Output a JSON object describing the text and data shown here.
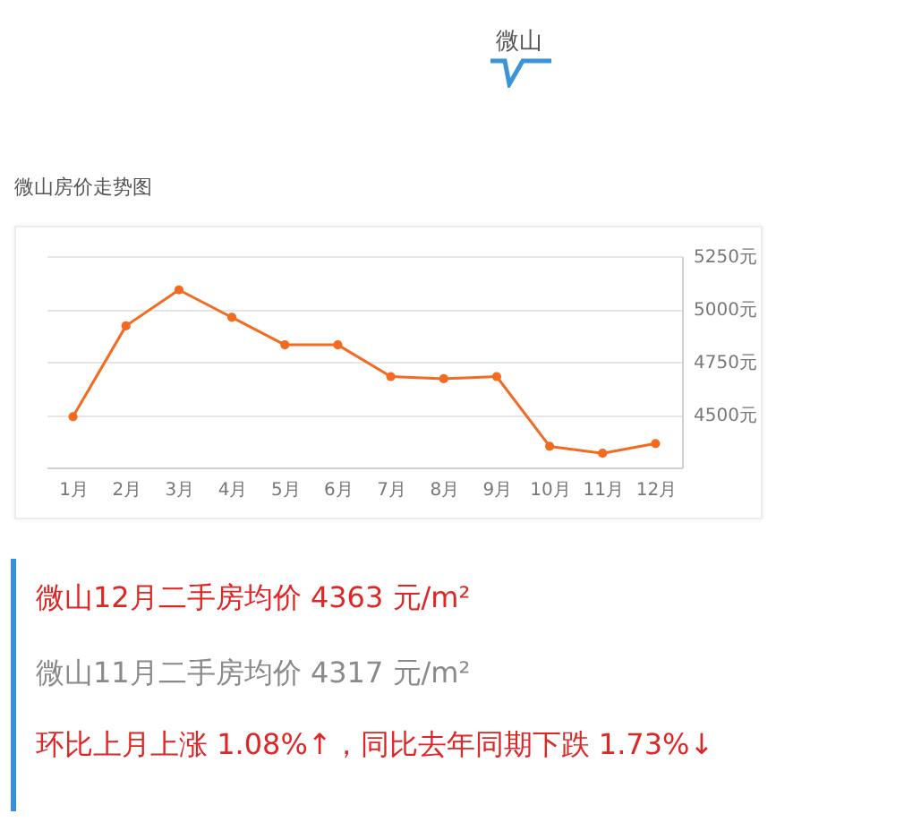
{
  "chart_data": {
    "type": "line",
    "title": "微山房价走势图",
    "categories": [
      "1月",
      "2月",
      "3月",
      "4月",
      "5月",
      "6月",
      "7月",
      "8月",
      "9月",
      "10月",
      "11月",
      "12月"
    ],
    "series": [
      {
        "color": "#f26b21",
        "values": [
          4490,
          4920,
          5090,
          4960,
          4830,
          4830,
          4680,
          4670,
          4680,
          4350,
          4317,
          4363
        ]
      }
    ],
    "ylim": [
      4250,
      5250
    ],
    "yticks": [
      {
        "value": 4500,
        "label": "4500元"
      },
      {
        "value": 4750,
        "label": "4750元"
      },
      {
        "value": 5000,
        "label": "5000元"
      },
      {
        "value": 5250,
        "label": "5250元"
      }
    ],
    "grid": "y",
    "marker": "circle",
    "line_style": "solid",
    "annotations": [
      "微山",
      "微山12月二手房均价 4363 元/m²",
      "微山11月二手房均价 4317 元/m²",
      "环比上月上涨 1.08%↑，同比去年同期下跌 1.73%↓"
    ]
  }
}
